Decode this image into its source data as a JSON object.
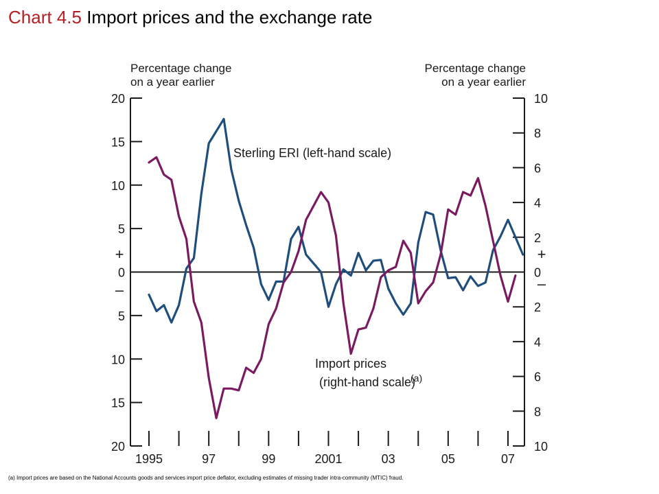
{
  "title": {
    "prefix": "Chart 4.5",
    "main": "Import prices and the exchange rate"
  },
  "footnote": "(a)  Import prices are based on the National Accounts goods and services import price deflator, excluding estimates of missing trader intra-community (MTIC) fraud.",
  "colors": {
    "title_prefix": "#b52025",
    "sterling_eri": "#1f4e7c",
    "import_prices": "#7a1b62",
    "axis": "#1a1a1a"
  },
  "chart_data": {
    "type": "line",
    "left_axis": {
      "label_line1": "Percentage change",
      "label_line2": "on a year earlier",
      "range": [
        -20,
        20
      ],
      "ticks": [
        20,
        15,
        10,
        5,
        0,
        -5,
        -10,
        -15,
        -20
      ],
      "tick_labels": [
        "20",
        "15",
        "10",
        "5",
        "0",
        "5",
        "10",
        "15",
        "20"
      ],
      "plus_sign": "+",
      "minus_sign": "–"
    },
    "right_axis": {
      "label_line1": "Percentage change",
      "label_line2": "on a year earlier",
      "range": [
        -10,
        10
      ],
      "ticks": [
        10,
        8,
        6,
        4,
        2,
        0,
        -2,
        -4,
        -6,
        -8,
        -10
      ],
      "tick_labels": [
        "10",
        "8",
        "6",
        "4",
        "2",
        "0",
        "2",
        "4",
        "6",
        "8",
        "10"
      ],
      "plus_sign": "+",
      "minus_sign": "–"
    },
    "x_axis": {
      "range": [
        1995.0,
        2008.0
      ],
      "tick_positions": [
        1995,
        1996,
        1997,
        1998,
        1999,
        2000,
        2001,
        2002,
        2003,
        2004,
        2005,
        2006,
        2007
      ],
      "labels": [
        {
          "x": 1995,
          "text": "1995"
        },
        {
          "x": 1997,
          "text": "97"
        },
        {
          "x": 1999,
          "text": "99"
        },
        {
          "x": 2001,
          "text": "2001"
        },
        {
          "x": 2003,
          "text": "03"
        },
        {
          "x": 2005,
          "text": "05"
        },
        {
          "x": 2007,
          "text": "07"
        }
      ]
    },
    "annotations": {
      "sterling": "Sterling ERI (left-hand scale)",
      "import_line1": "Import prices",
      "import_line2": "(right-hand scale)",
      "import_marker": "(a)"
    },
    "series": [
      {
        "key": "sterling",
        "name": "Sterling ERI (left-hand scale)",
        "axis": "left",
        "x": [
          1995.0,
          1995.25,
          1995.5,
          1995.75,
          1996.0,
          1996.25,
          1996.5,
          1996.75,
          1997.0,
          1997.25,
          1997.5,
          1997.75,
          1998.0,
          1998.25,
          1998.5,
          1998.75,
          1999.0,
          1999.25,
          1999.5,
          1999.75,
          2000.0,
          2000.25,
          2000.5,
          2000.75,
          2001.0,
          2001.25,
          2001.5,
          2001.75,
          2002.0,
          2002.25,
          2002.5,
          2002.75,
          2003.0,
          2003.25,
          2003.5,
          2003.75,
          2004.0,
          2004.25,
          2004.5,
          2004.75,
          2005.0,
          2005.25,
          2005.5,
          2005.75,
          2006.0,
          2006.25,
          2006.5,
          2006.75,
          2007.0,
          2007.25,
          2007.5
        ],
        "y": [
          -2.6,
          -4.5,
          -3.8,
          -5.8,
          -3.8,
          0.4,
          1.6,
          9.0,
          14.8,
          16.2,
          17.6,
          11.8,
          8.2,
          5.4,
          2.8,
          -1.4,
          -3.2,
          -1.1,
          -1.1,
          3.8,
          5.2,
          2.0,
          1.0,
          0.0,
          -4.0,
          -1.4,
          0.3,
          -0.4,
          2.2,
          0.2,
          1.3,
          1.4,
          -1.9,
          -3.6,
          -4.9,
          -3.6,
          3.4,
          6.9,
          6.6,
          2.5,
          -0.7,
          -0.6,
          -2.1,
          -0.5,
          -1.6,
          -1.2,
          2.5,
          4.1,
          6.0,
          4.0,
          2.0
        ]
      },
      {
        "key": "import",
        "name": "Import prices (right-hand scale)(a)",
        "axis": "right",
        "x": [
          1995.0,
          1995.25,
          1995.5,
          1995.75,
          1996.0,
          1996.25,
          1996.5,
          1996.75,
          1997.0,
          1997.25,
          1997.5,
          1997.75,
          1998.0,
          1998.25,
          1998.5,
          1998.75,
          1999.0,
          1999.25,
          1999.5,
          1999.75,
          2000.0,
          2000.25,
          2000.5,
          2000.75,
          2001.0,
          2001.25,
          2001.5,
          2001.75,
          2002.0,
          2002.25,
          2002.5,
          2002.75,
          2003.0,
          2003.25,
          2003.5,
          2003.75,
          2004.0,
          2004.25,
          2004.5,
          2004.75,
          2005.0,
          2005.25,
          2005.5,
          2005.75,
          2006.0,
          2006.25,
          2006.5,
          2006.75,
          2007.0,
          2007.25
        ],
        "y": [
          6.3,
          6.6,
          5.6,
          5.3,
          3.2,
          1.9,
          -1.7,
          -2.9,
          -6.1,
          -8.4,
          -6.7,
          -6.7,
          -6.8,
          -5.5,
          -5.8,
          -5.0,
          -3.0,
          -2.1,
          -0.6,
          0.0,
          1.2,
          3.0,
          3.8,
          4.6,
          4.0,
          2.1,
          -1.8,
          -4.7,
          -3.3,
          -3.2,
          -2.1,
          -0.3,
          0.1,
          0.3,
          1.8,
          1.1,
          -1.8,
          -1.1,
          -0.6,
          1.0,
          3.6,
          3.3,
          4.6,
          4.4,
          5.4,
          3.8,
          1.8,
          -0.2,
          -1.7,
          -0.2
        ]
      }
    ]
  }
}
